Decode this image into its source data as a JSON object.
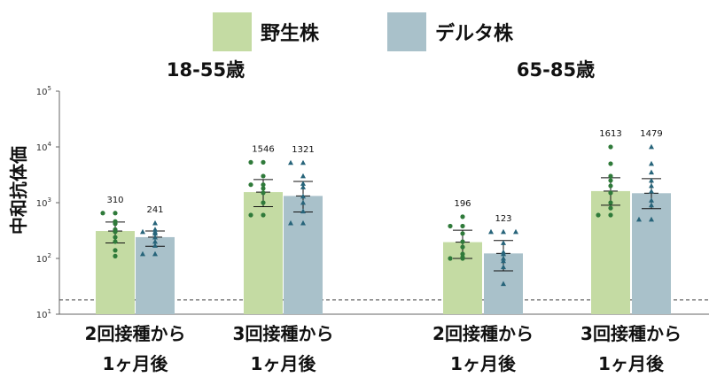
{
  "chart_data": {
    "type": "bar",
    "ylabel": "中和抗体価",
    "yscale": "log",
    "ylim": [
      10,
      100000
    ],
    "yticks": [
      {
        "base": "10",
        "exp": "1"
      },
      {
        "base": "10",
        "exp": "2"
      },
      {
        "base": "10",
        "exp": "3"
      },
      {
        "base": "10",
        "exp": "4"
      },
      {
        "base": "10",
        "exp": "5"
      }
    ],
    "reference_line": 18,
    "legend": [
      {
        "name": "野生株",
        "color": "#c4dba3"
      },
      {
        "name": "デルタ株",
        "color": "#a9c1ca"
      }
    ],
    "groups": [
      {
        "label": "18-55歳",
        "categories": [
          {
            "label_line1": "2回接種から",
            "label_line2": "1ヶ月後",
            "bars": [
              {
                "series": "野生株",
                "value": 310,
                "label": "310",
                "err_low": 190,
                "err_high": 450,
                "points": [
                  650,
                  650,
                  460,
                  420,
                  330,
                  300,
                  240,
                  200,
                  140,
                  110
                ]
              },
              {
                "series": "デルタ株",
                "value": 241,
                "label": "241",
                "err_low": 165,
                "err_high": 310,
                "points": [
                  430,
                  330,
                  300,
                  300,
                  280,
                  240,
                  200,
                  170,
                  120,
                  120
                ]
              }
            ]
          },
          {
            "label_line1": "3回接種から",
            "label_line2": "1ヶ月後",
            "bars": [
              {
                "series": "野生株",
                "value": 1546,
                "label": "1546",
                "err_low": 850,
                "err_high": 2600,
                "points": [
                  5300,
                  5300,
                  3000,
                  2100,
                  2100,
                  1800,
                  1500,
                  1000,
                  600,
                  600
                ]
              },
              {
                "series": "デルタ株",
                "value": 1321,
                "label": "1321",
                "err_low": 680,
                "err_high": 2400,
                "points": [
                  5200,
                  5200,
                  3000,
                  2200,
                  1900,
                  1300,
                  1000,
                  700,
                  430,
                  430
                ]
              }
            ]
          }
        ]
      },
      {
        "label": "65-85歳",
        "categories": [
          {
            "label_line1": "2回接種から",
            "label_line2": "1ヶ月後",
            "bars": [
              {
                "series": "野生株",
                "value": 196,
                "label": "196",
                "err_low": 100,
                "err_high": 320,
                "points": [
                  560,
                  380,
                  380,
                  280,
                  200,
                  160,
                  120,
                  105,
                  100,
                  100
                ]
              },
              {
                "series": "デルタ株",
                "value": 123,
                "label": "123",
                "err_low": 60,
                "err_high": 210,
                "points": [
                  300,
                  300,
                  300,
                  190,
                  130,
                  120,
                  100,
                  90,
                  70,
                  35
                ]
              }
            ]
          },
          {
            "label_line1": "3回接種から",
            "label_line2": "1ヶ月後",
            "bars": [
              {
                "series": "野生株",
                "value": 1613,
                "label": "1613",
                "err_low": 900,
                "err_high": 2800,
                "points": [
                  10000,
                  5000,
                  3000,
                  2500,
                  2000,
                  1500,
                  1000,
                  800,
                  600,
                  600
                ]
              },
              {
                "series": "デルタ株",
                "value": 1479,
                "label": "1479",
                "err_low": 780,
                "err_high": 2700,
                "points": [
                  10000,
                  5000,
                  3500,
                  2500,
                  2000,
                  1600,
                  1100,
                  900,
                  500,
                  500
                ]
              }
            ]
          }
        ]
      }
    ]
  }
}
